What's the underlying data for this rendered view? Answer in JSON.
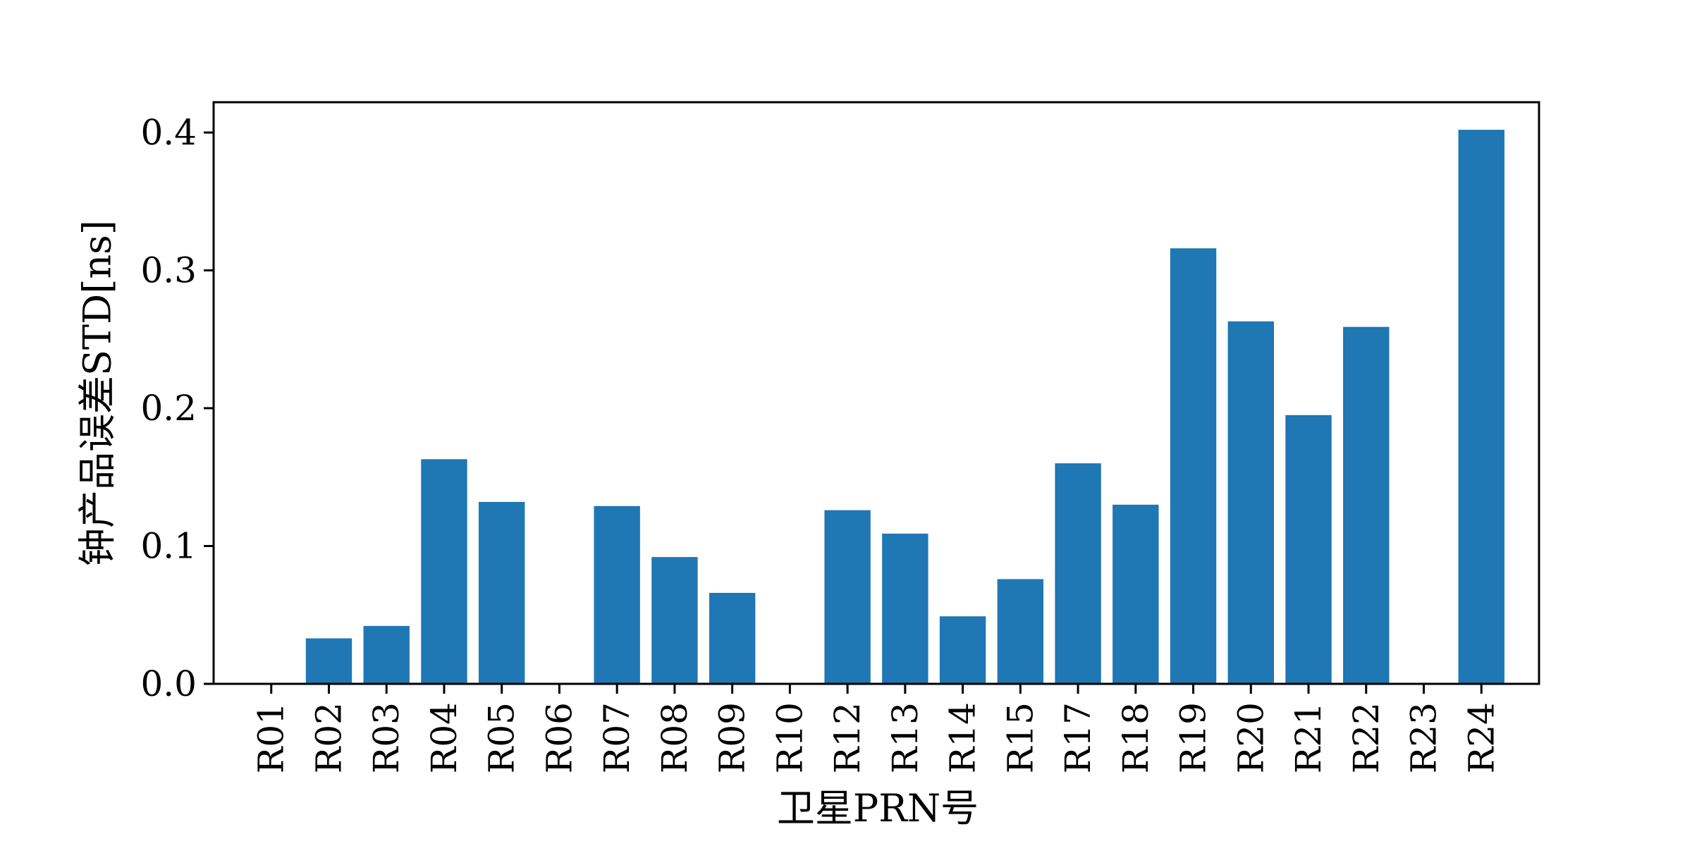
{
  "chart_data": {
    "type": "bar",
    "title": "",
    "xlabel": "卫星PRN号",
    "ylabel": "钟产品误差STD[ns]",
    "categories": [
      "R01",
      "R02",
      "R03",
      "R04",
      "R05",
      "R06",
      "R07",
      "R08",
      "R09",
      "R10",
      "R12",
      "R13",
      "R14",
      "R15",
      "R17",
      "R18",
      "R19",
      "R20",
      "R21",
      "R22",
      "R23",
      "R24"
    ],
    "values": [
      0.0,
      0.033,
      0.042,
      0.163,
      0.132,
      0.0,
      0.129,
      0.092,
      0.066,
      0.0,
      0.126,
      0.109,
      0.049,
      0.076,
      0.16,
      0.13,
      0.316,
      0.263,
      0.195,
      0.259,
      0.0,
      0.402
    ],
    "ylim": [
      0.0,
      0.422
    ],
    "yticks": [
      0.0,
      0.1,
      0.2,
      0.3,
      0.4
    ],
    "ytick_labels": [
      "0.0",
      "0.1",
      "0.2",
      "0.3",
      "0.4"
    ],
    "grid": false,
    "bar_color": "#1f77b4",
    "tick_label_rotation_deg": -90
  }
}
